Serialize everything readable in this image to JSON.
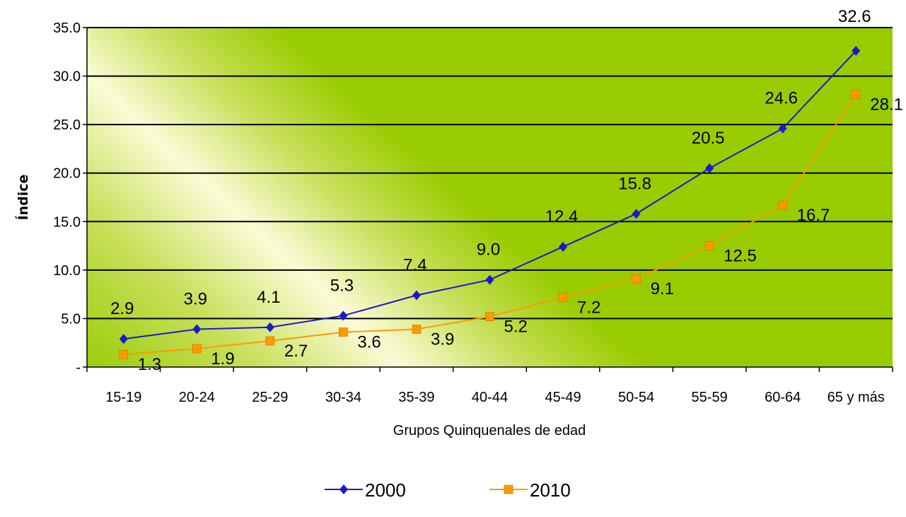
{
  "chart_data": {
    "type": "line",
    "categories": [
      "15-19",
      "20-24",
      "25-29",
      "30-34",
      "35-39",
      "40-44",
      "45-49",
      "50-54",
      "55-59",
      "60-64",
      "65 y más"
    ],
    "series": [
      {
        "name": "2000",
        "values": [
          2.9,
          3.9,
          4.1,
          5.3,
          7.4,
          9.0,
          12.4,
          15.8,
          20.5,
          24.6,
          32.6
        ],
        "color": "#1a1acc",
        "marker": "diamond"
      },
      {
        "name": "2010",
        "values": [
          1.3,
          1.9,
          2.7,
          3.6,
          3.9,
          5.2,
          7.2,
          9.1,
          12.5,
          16.7,
          28.1
        ],
        "color": "#ff9900",
        "marker": "square"
      }
    ],
    "xlabel": "Grupos Quinquenales de edad",
    "ylabel": "Índice",
    "ylim": [
      0,
      35
    ],
    "yticks": [
      0,
      5,
      10,
      15,
      20,
      25,
      30,
      35
    ],
    "ytick_labels": [
      "-",
      "5.0",
      "10.0",
      "15.0",
      "20.0",
      "25.0",
      "30.0",
      "35.0"
    ],
    "grid": true,
    "legend": "bottom",
    "plot_background": "#99cc00"
  }
}
